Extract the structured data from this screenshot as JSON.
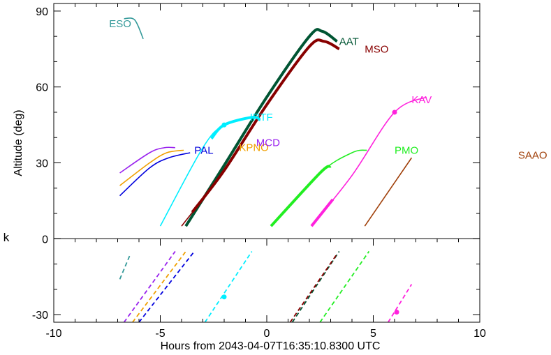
{
  "chart_data": {
    "type": "line",
    "xlabel": "Hours from 2043-04-07T16:35:10.8300 UTC",
    "ylabel": "Altitude (deg)",
    "xlim": [
      -10,
      10
    ],
    "ylim": [
      -33,
      93
    ],
    "x_ticks": [
      -10,
      -5,
      0,
      5,
      10
    ],
    "y_ticks": [
      -30,
      0,
      30,
      60,
      90
    ],
    "horizon_label": "k",
    "grid": false,
    "series": [
      {
        "name": "ESO",
        "color": "#339999",
        "upper": {
          "x": [
            -6.7,
            -6.2,
            -5.8
          ],
          "y": [
            87,
            86.5,
            79
          ]
        },
        "lower": {
          "x": [
            -6.9,
            -6.4
          ],
          "y": [
            -16,
            -6
          ]
        },
        "label_pos": [
          -7.4,
          85
        ]
      },
      {
        "name": "AAT",
        "color": "#005533",
        "upper": {
          "x": [
            -3.8,
            -2.0,
            0.0,
            2.0,
            2.6,
            3.3
          ],
          "y": [
            5,
            29,
            56,
            80,
            82,
            78
          ]
        },
        "thick_range": [
          -3.8,
          3.3
        ],
        "lower": {
          "x": [
            1.2,
            3.4
          ],
          "y": [
            -33,
            -5
          ]
        },
        "label_pos": [
          3.4,
          78
        ]
      },
      {
        "name": "MSO",
        "color": "#880000",
        "upper": {
          "x": [
            -4.0,
            -2.0,
            0.0,
            2.0,
            2.7,
            3.4
          ],
          "y": [
            5,
            27,
            53,
            76,
            78,
            75
          ]
        },
        "thick_range": [
          -3.5,
          3.4
        ],
        "lower": {
          "x": [
            1.1,
            3.3
          ],
          "y": [
            -33,
            -6
          ]
        },
        "label_pos": [
          4.6,
          75
        ]
      },
      {
        "name": "KAV",
        "color": "#ff22dd",
        "upper": {
          "x": [
            2.1,
            4.0,
            6.0,
            7.5
          ],
          "y": [
            5,
            25,
            50,
            56
          ]
        },
        "thick_range": [
          2.1,
          3.1
        ],
        "marker": [
          6.0,
          50
        ],
        "lower": {
          "x": [
            5.7,
            6.8
          ],
          "y": [
            -33,
            -18
          ]
        },
        "lower_marker": [
          6.1,
          -29
        ],
        "label_pos": [
          6.8,
          55
        ]
      },
      {
        "name": "PMO",
        "color": "#22ee22",
        "upper": {
          "x": [
            0.2,
            2.5,
            4.0,
            4.7
          ],
          "y": [
            5,
            26,
            34,
            35
          ]
        },
        "thick_range": [
          0.2,
          3.0
        ],
        "lower": {
          "x": [
            2.5,
            4.8
          ],
          "y": [
            -33,
            -5
          ]
        },
        "label_pos": [
          6.0,
          35
        ]
      },
      {
        "name": "SAAO",
        "color": "#a0400a",
        "upper": {
          "x": [
            4.6,
            6.8
          ],
          "y": [
            5,
            32
          ]
        },
        "label_pos": [
          11.8,
          33
        ]
      },
      {
        "name": "IRTF",
        "color": "#00eeff",
        "upper": {
          "x": [
            -5.0,
            -3.0,
            -2.0,
            -0.7,
            -0.3
          ],
          "y": [
            5,
            36,
            45,
            48,
            47
          ]
        },
        "thick_range": [
          -2.6,
          -0.3
        ],
        "marker": [
          -2.0,
          45
        ],
        "lower": {
          "x": [
            -2.9,
            -0.7
          ],
          "y": [
            -33,
            -5
          ]
        },
        "lower_marker": [
          -2.0,
          -23
        ],
        "label_pos": [
          -0.8,
          48
        ]
      },
      {
        "name": "PAL",
        "color": "#0000dd",
        "upper": {
          "x": [
            -6.9,
            -5.5,
            -4.6,
            -3.6
          ],
          "y": [
            17,
            28,
            32,
            34
          ]
        },
        "lower": {
          "x": [
            -6.0,
            -3.4
          ],
          "y": [
            -33,
            -5
          ]
        },
        "label_pos": [
          -3.4,
          35
        ]
      },
      {
        "name": "KPNO",
        "color": "#f0a000",
        "upper": {
          "x": [
            -6.9,
            -5.5,
            -4.7,
            -3.9
          ],
          "y": [
            21,
            30,
            34,
            35
          ]
        },
        "lower": {
          "x": [
            -6.3,
            -3.8
          ],
          "y": [
            -33,
            -5
          ]
        },
        "label_pos": [
          -1.3,
          36
        ]
      },
      {
        "name": "MCD",
        "color": "#9922ee",
        "upper": {
          "x": [
            -6.9,
            -5.5,
            -4.8,
            -4.3
          ],
          "y": [
            26,
            34,
            36,
            36
          ]
        },
        "lower": {
          "x": [
            -6.7,
            -4.3
          ],
          "y": [
            -33,
            -5
          ]
        },
        "label_pos": [
          -0.5,
          38
        ]
      }
    ]
  }
}
